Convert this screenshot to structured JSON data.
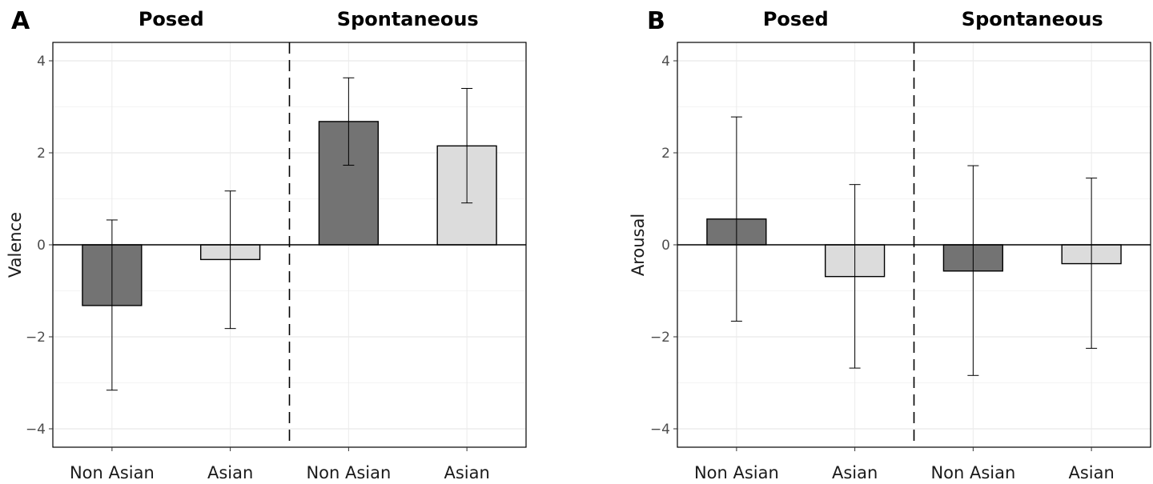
{
  "chart_data": [
    {
      "type": "bar",
      "panel_label": "A",
      "groups": [
        "Posed",
        "Spontaneous"
      ],
      "categories": [
        "Non Asian",
        "Asian",
        "Non Asian",
        "Asian"
      ],
      "values": [
        -1.32,
        -0.32,
        2.68,
        2.15
      ],
      "error_low": [
        -3.16,
        -1.82,
        1.73,
        0.91
      ],
      "error_high": [
        0.54,
        1.17,
        3.63,
        3.4
      ],
      "bar_colors": [
        "#737373",
        "#dcdcdc",
        "#737373",
        "#dcdcdc"
      ],
      "ylabel": "Valence",
      "xlabel": "",
      "ylim": [
        -4.4,
        4.4
      ],
      "yticks": [
        4,
        2,
        0,
        -2,
        -4
      ],
      "ytick_labels": [
        "4",
        "2",
        "0",
        "−2",
        "−4"
      ],
      "grid": true
    },
    {
      "type": "bar",
      "panel_label": "B",
      "groups": [
        "Posed",
        "Spontaneous"
      ],
      "categories": [
        "Non Asian",
        "Asian",
        "Non Asian",
        "Asian"
      ],
      "values": [
        0.56,
        -0.69,
        -0.57,
        -0.41
      ],
      "error_low": [
        -1.66,
        -2.68,
        -2.84,
        -2.25
      ],
      "error_high": [
        2.78,
        1.31,
        1.72,
        1.45
      ],
      "bar_colors": [
        "#737373",
        "#dcdcdc",
        "#737373",
        "#dcdcdc"
      ],
      "ylabel": "Arousal",
      "xlabel": "",
      "ylim": [
        -4.4,
        4.4
      ],
      "yticks": [
        4,
        2,
        0,
        -2,
        -4
      ],
      "ytick_labels": [
        "4",
        "2",
        "0",
        "−2",
        "−4"
      ],
      "grid": true
    }
  ]
}
